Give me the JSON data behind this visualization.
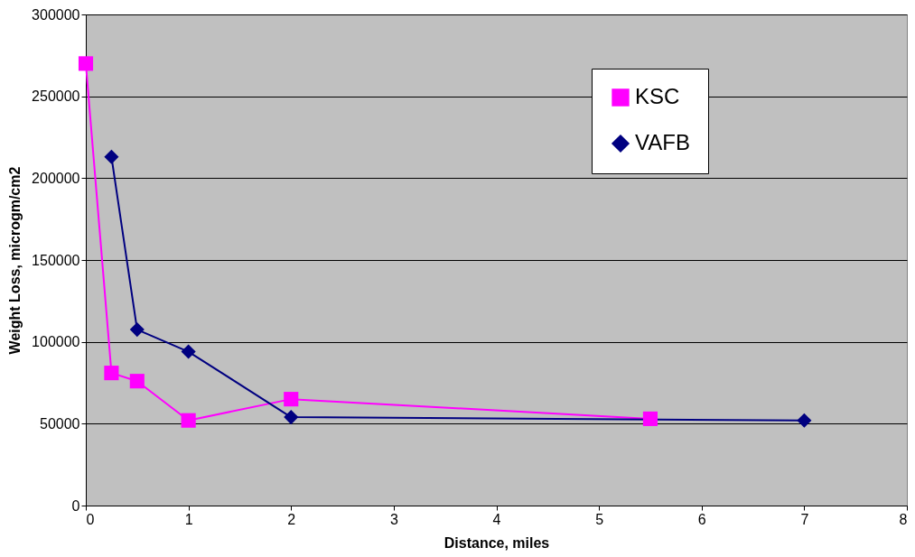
{
  "chart_data": {
    "type": "line",
    "xlabel": "Distance, miles",
    "ylabel": "Weight Loss, microgm/cm2",
    "xlim": [
      0,
      8
    ],
    "xticks": [
      0,
      1,
      2,
      3,
      4,
      5,
      6,
      7,
      8
    ],
    "ylim": [
      0,
      300000
    ],
    "yticks": [
      0,
      50000,
      100000,
      150000,
      200000,
      250000,
      300000
    ],
    "grid": "y",
    "legend": "top right",
    "line_style": "solid",
    "series": [
      {
        "name": "KSC",
        "color": "#ff00ff",
        "marker": "square",
        "x": [
          0,
          0.25,
          0.5,
          1,
          2,
          5.5
        ],
        "values": [
          270000,
          81000,
          76000,
          52000,
          65000,
          53000
        ]
      },
      {
        "name": "VAFB",
        "color": "#000080",
        "marker": "diamond",
        "x": [
          0.25,
          0.5,
          1,
          2,
          7
        ],
        "values": [
          213000,
          107500,
          94000,
          54000,
          52000
        ]
      }
    ]
  }
}
